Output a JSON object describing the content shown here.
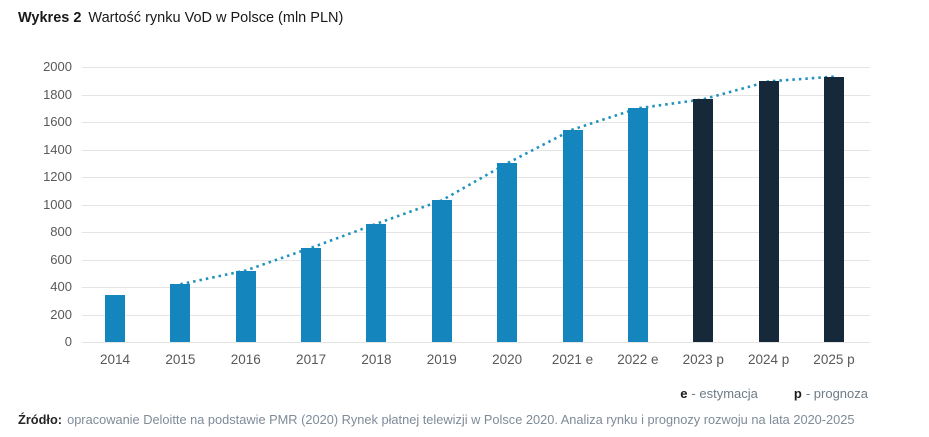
{
  "title": {
    "label": "Wykres 2",
    "text": "Wartość rynku VoD w Polsce (mln PLN)"
  },
  "legend": {
    "items": [
      {
        "symbol": "e",
        "text": "- estymacja"
      },
      {
        "symbol": "p",
        "text": "- prognoza"
      }
    ]
  },
  "source": {
    "label": "Źródło:",
    "text": "opracowanie Deloitte na podstawie PMR (2020) Rynek płatnej telewizji w Polsce 2020. Analiza rynku i prognozy rozwoju na lata 2020-2025"
  },
  "colors": {
    "bar_actual": "#1486bd",
    "bar_forecast": "#16293a",
    "trend_line": "#2191bd",
    "gridline": "#e4e4e4",
    "axis_text": "#595959"
  },
  "chart_data": {
    "type": "bar",
    "title": "Wartość rynku VoD w Polsce (mln PLN)",
    "xlabel": "",
    "ylabel": "mln PLN",
    "categories": [
      "2014",
      "2015",
      "2016",
      "2017",
      "2018",
      "2019",
      "2020",
      "2021 e",
      "2022 e",
      "2023 p",
      "2024 p",
      "2025 p"
    ],
    "values": [
      340,
      420,
      520,
      685,
      860,
      1030,
      1300,
      1545,
      1700,
      1765,
      1895,
      1930
    ],
    "bar_types": [
      "actual",
      "actual",
      "actual",
      "actual",
      "actual",
      "actual",
      "actual",
      "actual",
      "actual",
      "forecast",
      "forecast",
      "forecast"
    ],
    "ylim": [
      0,
      2000
    ],
    "ytick_step": 200,
    "yticks": [
      0,
      200,
      400,
      600,
      800,
      1000,
      1200,
      1400,
      1600,
      1800,
      2000
    ],
    "grid": true,
    "legend_position": "bottom-right",
    "trend_line": {
      "style": "dotted",
      "start_index": 1,
      "end_index": 11,
      "connects": "bar tops"
    }
  }
}
